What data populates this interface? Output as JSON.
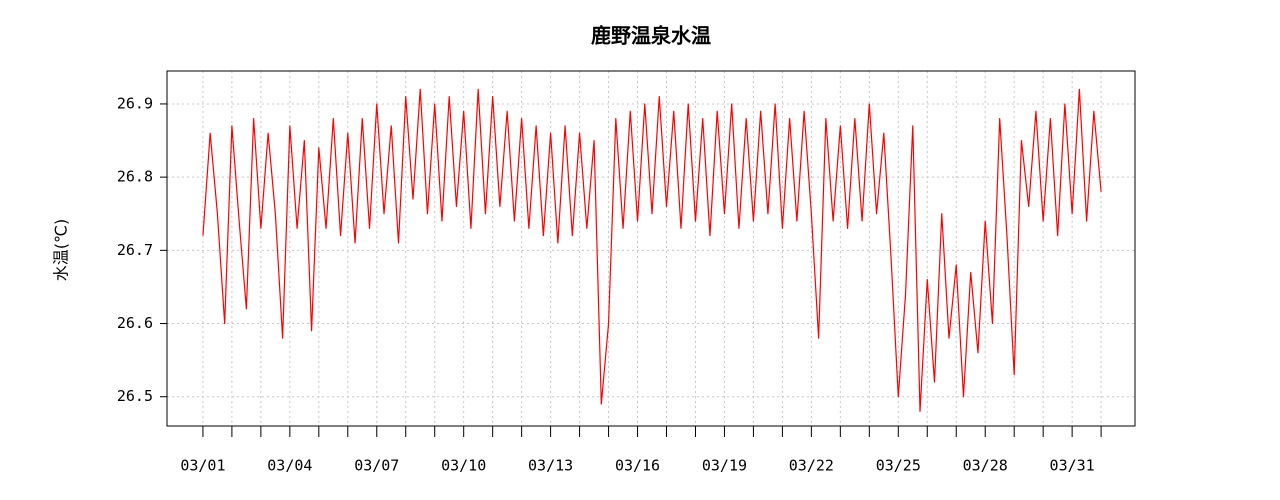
{
  "chart_data": {
    "type": "line",
    "title": "鹿野温泉水温",
    "y_label": "水温(℃)",
    "x": [
      1,
      1.25,
      1.5,
      1.75,
      2,
      2.25,
      2.5,
      2.75,
      3,
      3.25,
      3.5,
      3.75,
      4,
      4.25,
      4.5,
      4.75,
      5,
      5.25,
      5.5,
      5.75,
      6,
      6.25,
      6.5,
      6.75,
      7,
      7.25,
      7.5,
      7.75,
      8,
      8.25,
      8.5,
      8.75,
      9,
      9.25,
      9.5,
      9.75,
      10,
      10.25,
      10.5,
      10.75,
      11,
      11.25,
      11.5,
      11.75,
      12,
      12.25,
      12.5,
      12.75,
      13,
      13.25,
      13.5,
      13.75,
      14,
      14.25,
      14.5,
      14.75,
      15,
      15.25,
      15.5,
      15.75,
      16,
      16.25,
      16.5,
      16.75,
      17,
      17.25,
      17.5,
      17.75,
      18,
      18.25,
      18.5,
      18.75,
      19,
      19.25,
      19.5,
      19.75,
      20,
      20.25,
      20.5,
      20.75,
      21,
      21.25,
      21.5,
      21.75,
      22,
      22.25,
      22.5,
      22.75,
      23,
      23.25,
      23.5,
      23.75,
      24,
      24.25,
      24.5,
      24.75,
      25,
      25.25,
      25.5,
      25.75,
      26,
      26.25,
      26.5,
      26.75,
      27,
      27.25,
      27.5,
      27.75,
      28,
      28.25,
      28.5,
      28.75,
      29,
      29.25,
      29.5,
      29.75,
      30,
      30.25,
      30.5,
      30.75,
      31,
      31.25,
      31.5,
      31.75,
      32
    ],
    "series": [
      {
        "name": "水温",
        "color": "#ff0000",
        "values": [
          26.72,
          26.86,
          26.75,
          26.6,
          26.87,
          26.74,
          26.62,
          26.88,
          26.73,
          26.86,
          26.75,
          26.58,
          26.87,
          26.73,
          26.85,
          26.59,
          26.84,
          26.73,
          26.88,
          26.72,
          26.86,
          26.71,
          26.88,
          26.73,
          26.9,
          26.75,
          26.87,
          26.71,
          26.91,
          26.77,
          26.92,
          26.75,
          26.9,
          26.74,
          26.91,
          26.76,
          26.89,
          26.73,
          26.92,
          26.75,
          26.91,
          26.76,
          26.89,
          26.74,
          26.88,
          26.73,
          26.87,
          26.72,
          26.86,
          26.71,
          26.87,
          26.72,
          26.86,
          26.73,
          26.85,
          26.49,
          26.6,
          26.88,
          26.73,
          26.89,
          26.74,
          26.9,
          26.75,
          26.91,
          26.76,
          26.89,
          26.73,
          26.9,
          26.74,
          26.88,
          26.72,
          26.89,
          26.75,
          26.9,
          26.73,
          26.88,
          26.74,
          26.89,
          26.75,
          26.9,
          26.73,
          26.88,
          26.74,
          26.89,
          26.75,
          26.58,
          26.88,
          26.74,
          26.87,
          26.73,
          26.88,
          26.74,
          26.9,
          26.75,
          26.86,
          26.69,
          26.5,
          26.64,
          26.87,
          26.48,
          26.66,
          26.52,
          26.75,
          26.58,
          26.68,
          26.5,
          26.67,
          26.56,
          26.74,
          26.6,
          26.88,
          26.72,
          26.53,
          26.85,
          26.76,
          26.89,
          26.74,
          26.88,
          26.72,
          26.9,
          26.75,
          26.92,
          26.74,
          26.89,
          26.78
        ]
      }
    ],
    "xlim": [
      -0.24,
      33.17
    ],
    "xticks": [
      {
        "value": 1,
        "label": "03/01"
      },
      {
        "value": 4,
        "label": "03/04"
      },
      {
        "value": 7,
        "label": "03/07"
      },
      {
        "value": 10,
        "label": "03/10"
      },
      {
        "value": 13,
        "label": "03/13"
      },
      {
        "value": 16,
        "label": "03/16"
      },
      {
        "value": 19,
        "label": "03/19"
      },
      {
        "value": 22,
        "label": "03/22"
      },
      {
        "value": 25,
        "label": "03/25"
      },
      {
        "value": 28,
        "label": "03/28"
      },
      {
        "value": 31,
        "label": "03/31"
      }
    ],
    "xminorticks": [
      2,
      3,
      5,
      6,
      8,
      9,
      11,
      12,
      14,
      15,
      17,
      18,
      20,
      21,
      23,
      24,
      26,
      27,
      29,
      30,
      32
    ],
    "ylim": [
      26.46,
      26.945
    ],
    "yticks": [
      26.5,
      26.6,
      26.7,
      26.8,
      26.9
    ],
    "grid": true
  }
}
